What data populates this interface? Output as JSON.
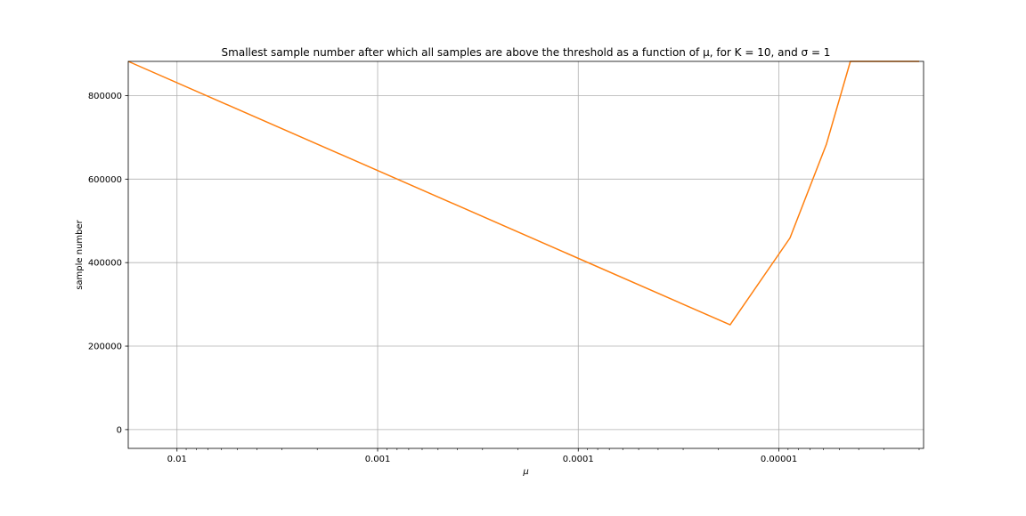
{
  "chart_data": {
    "type": "line",
    "title": "Smallest sample number after which all samples are above the threshold as a function of μ, for K = 10, and σ = 1",
    "xlabel": "μ",
    "ylabel": "sample number",
    "x_scale": "log",
    "x_reversed": true,
    "xlim": [
      0.0175,
      1.9e-06
    ],
    "ylim": [
      -45000,
      882000
    ],
    "xticks": [
      0.01,
      0.001,
      0.0001,
      1e-05
    ],
    "xtick_labels": [
      "0.01",
      "0.001",
      "0.0001",
      "0.00001"
    ],
    "yticks": [
      0,
      200000,
      400000,
      600000,
      800000
    ],
    "ytick_labels": [
      "0",
      "200000",
      "400000",
      "600000",
      "800000"
    ],
    "grid": true,
    "legend": "none",
    "series": [
      {
        "color": "#ff7f0e",
        "x": [
          0.0175,
          1.75e-05,
          8.8e-06,
          5.8e-06,
          4.4e-06,
          2e-06
        ],
        "y": [
          882000,
          251000,
          459000,
          683000,
          882000,
          882000
        ]
      }
    ]
  }
}
